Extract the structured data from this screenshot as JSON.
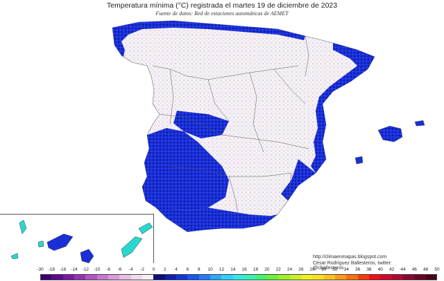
{
  "header": {
    "title": "Temperatura mínima (°C) registrada el martes 19 de diciembre de 2023",
    "source": "Fuente de datos: Red de estaciones automáticas de AEMET"
  },
  "credits": {
    "url": "http://climaenmapas.blogspot.com",
    "author": "César Rodríguez Ballesteros, twitter: @cballesteros"
  },
  "legend": {
    "ticks": [
      "-30",
      "-18",
      "-16",
      "-14",
      "-12",
      "-10",
      "-8",
      "-6",
      "-4",
      "-2",
      "0",
      "2",
      "4",
      "6",
      "8",
      "10",
      "12",
      "14",
      "16",
      "18",
      "20",
      "22",
      "24",
      "26",
      "28",
      "30",
      "32",
      "34",
      "36",
      "38",
      "40",
      "42",
      "44",
      "46",
      "48",
      "50"
    ],
    "colors": [
      "#3a006e",
      "#5c0a8a",
      "#7a1aa0",
      "#9633b0",
      "#b055c2",
      "#c878cf",
      "#d99ad9",
      "#e6bde3",
      "#efd9ee",
      "#f7eef7",
      "#0a0f7a",
      "#1020a8",
      "#1238d0",
      "#1a55f0",
      "#2a78ff",
      "#2fa6ff",
      "#2fd0ff",
      "#32e8e0",
      "#3af0b0",
      "#48f070",
      "#6ef038",
      "#9ef028",
      "#c8f020",
      "#eef020",
      "#ffe020",
      "#ffc020",
      "#ff9a18",
      "#ff7010",
      "#ff3a10",
      "#f0101a",
      "#d0082a",
      "#b00830",
      "#8a0630",
      "#6a0424",
      "#4a0218"
    ]
  },
  "map": {
    "title": "Spain min temperature map",
    "colors": {
      "below_zero_light": "#efd9ee",
      "near_zero": "#f3f1f4",
      "cold_blue": "#1a2fd6",
      "deep_blue": "#0a1490",
      "canary_cyan": "#28d8d0",
      "borders": "#555555"
    }
  }
}
